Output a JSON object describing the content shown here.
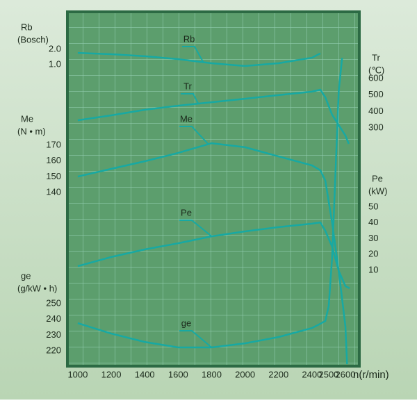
{
  "chart_data": {
    "type": "line",
    "x_title": "n(r/min)",
    "xlim": [
      938,
      2683
    ],
    "xticks": [
      1000,
      1200,
      1400,
      1600,
      1800,
      2000,
      2200,
      2400,
      2500,
      2600
    ],
    "line_color": "#17a9a3",
    "y_axes": [
      {
        "title": "Rb",
        "unit": "(Bosch)",
        "side": "left",
        "ylim": [
          1,
          2
        ],
        "yticks": [
          {
            "value": 2,
            "label": "2.0"
          },
          {
            "value": 1,
            "label": "1.0"
          }
        ]
      },
      {
        "title": "Tr",
        "unit": "(℃)",
        "side": "right",
        "ylim": [
          300,
          600
        ],
        "yticks": [
          600,
          500,
          400,
          300
        ]
      },
      {
        "title": "Me",
        "unit": "(N • m)",
        "side": "left",
        "ylim": [
          140,
          170
        ],
        "yticks": [
          170,
          160,
          150,
          140
        ]
      },
      {
        "title": "Pe",
        "unit": "(kW)",
        "side": "right",
        "ylim": [
          10,
          50
        ],
        "yticks": [
          50,
          40,
          30,
          20,
          10
        ]
      },
      {
        "title": "ge",
        "unit": "(g/kW • h)",
        "side": "left",
        "ylim": [
          220,
          250
        ],
        "yticks": [
          250,
          240,
          230,
          220
        ]
      }
    ],
    "series": [
      {
        "name": "Rb",
        "axis": 0,
        "x": [
          1000,
          1200,
          1400,
          1600,
          1800,
          2000,
          2200,
          2400,
          2450
        ],
        "values": [
          1.77,
          1.68,
          1.55,
          1.36,
          1.09,
          0.91,
          1.09,
          1.45,
          1.73
        ]
      },
      {
        "name": "Tr",
        "axis": 1,
        "x": [
          1000,
          1200,
          1400,
          1600,
          1800,
          2000,
          2200,
          2400,
          2450,
          2480,
          2520,
          2560,
          2600,
          2620
        ],
        "values": [
          346,
          376,
          410,
          435,
          456,
          477,
          499,
          520,
          532,
          486,
          380,
          317,
          253,
          203
        ]
      },
      {
        "name": "Me",
        "axis": 2,
        "x": [
          1000,
          1200,
          1400,
          1600,
          1800,
          2000,
          2200,
          2400,
          2450,
          2480,
          2520,
          2560,
          2600,
          2610
        ],
        "values": [
          150.1,
          155,
          159.8,
          165.1,
          171.3,
          168.7,
          162.9,
          157.2,
          154.1,
          147.5,
          121,
          90,
          55,
          31
        ]
      },
      {
        "name": "Pe",
        "axis": 3,
        "x": [
          1000,
          1200,
          1400,
          1600,
          1800,
          2000,
          2200,
          2400,
          2450,
          2480,
          2520,
          2560,
          2600,
          2625
        ],
        "values": [
          12.6,
          18.4,
          23.2,
          27.1,
          31.5,
          34.6,
          37.3,
          39.5,
          40.3,
          35,
          25,
          9.6,
          0,
          -1.4
        ]
      },
      {
        "name": "ge",
        "axis": 4,
        "x": [
          1000,
          1200,
          1400,
          1600,
          1800,
          2000,
          2200,
          2400,
          2450,
          2480,
          2500,
          2520,
          2540,
          2560,
          2580
        ],
        "values": [
          237.6,
          231,
          225.7,
          222.2,
          222.2,
          224.8,
          228.8,
          234.5,
          237.2,
          239,
          248.6,
          279,
          332,
          385,
          406
        ]
      }
    ]
  }
}
